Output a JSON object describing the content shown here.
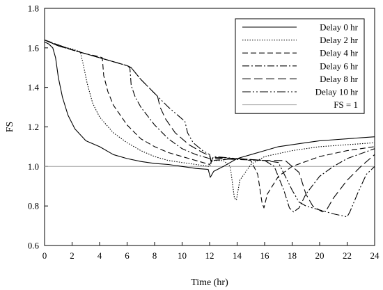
{
  "chart_data": {
    "type": "line",
    "xlabel": "Time (hr)",
    "ylabel": "FS",
    "xlim": [
      0,
      24
    ],
    "ylim": [
      0.6,
      1.8
    ],
    "xticks": [
      "0",
      "2",
      "4",
      "6",
      "8",
      "10",
      "12",
      "14",
      "16",
      "18",
      "20",
      "22",
      "24"
    ],
    "yticks": [
      "0.6",
      "0.8",
      "1.0",
      "1.2",
      "1.4",
      "1.6",
      "1.8"
    ],
    "grid": false,
    "legend_position": "top-right",
    "reference_line": {
      "name": "FS = 1",
      "y": 1.0,
      "color": "#b0b0b0"
    },
    "series": [
      {
        "name": "Delay 0 hr",
        "dash": "",
        "points": [
          [
            0,
            1.63
          ],
          [
            0.3,
            1.62
          ],
          [
            0.6,
            1.6
          ],
          [
            0.8,
            1.55
          ],
          [
            1.0,
            1.45
          ],
          [
            1.3,
            1.35
          ],
          [
            1.7,
            1.26
          ],
          [
            2.2,
            1.19
          ],
          [
            3,
            1.13
          ],
          [
            4,
            1.1
          ],
          [
            5,
            1.06
          ],
          [
            6,
            1.04
          ],
          [
            7,
            1.025
          ],
          [
            8,
            1.015
          ],
          [
            9,
            1.01
          ],
          [
            10,
            1.0
          ],
          [
            11,
            0.99
          ],
          [
            11.9,
            0.985
          ],
          [
            12.05,
            0.945
          ],
          [
            12.3,
            0.975
          ],
          [
            13,
            1.0
          ],
          [
            14,
            1.04
          ],
          [
            15,
            1.06
          ],
          [
            16,
            1.08
          ],
          [
            17,
            1.1
          ],
          [
            18,
            1.11
          ],
          [
            19,
            1.12
          ],
          [
            20,
            1.13
          ],
          [
            21,
            1.135
          ],
          [
            22,
            1.14
          ],
          [
            23,
            1.145
          ],
          [
            24,
            1.15
          ]
        ]
      },
      {
        "name": "Delay 2 hr",
        "dash": "1.5,2",
        "points": [
          [
            0,
            1.64
          ],
          [
            1,
            1.61
          ],
          [
            2,
            1.595
          ],
          [
            2.6,
            1.58
          ],
          [
            2.8,
            1.52
          ],
          [
            3.1,
            1.42
          ],
          [
            3.5,
            1.32
          ],
          [
            4,
            1.25
          ],
          [
            5,
            1.17
          ],
          [
            6,
            1.12
          ],
          [
            7,
            1.08
          ],
          [
            8,
            1.05
          ],
          [
            9,
            1.03
          ],
          [
            10,
            1.02
          ],
          [
            11,
            1.01
          ],
          [
            12,
            1.0
          ],
          [
            12.2,
            1.03
          ],
          [
            13,
            1.03
          ],
          [
            13.5,
            1.0
          ],
          [
            13.8,
            0.84
          ],
          [
            13.95,
            0.83
          ],
          [
            14.2,
            0.93
          ],
          [
            15,
            1.01
          ],
          [
            16,
            1.05
          ],
          [
            18,
            1.08
          ],
          [
            20,
            1.1
          ],
          [
            22,
            1.11
          ],
          [
            24,
            1.12
          ]
        ]
      },
      {
        "name": "Delay 4 hr",
        "dash": "8,4",
        "points": [
          [
            0,
            1.64
          ],
          [
            1,
            1.61
          ],
          [
            2,
            1.59
          ],
          [
            3,
            1.57
          ],
          [
            4,
            1.555
          ],
          [
            4.2,
            1.55
          ],
          [
            4.3,
            1.46
          ],
          [
            4.6,
            1.38
          ],
          [
            5,
            1.31
          ],
          [
            6,
            1.21
          ],
          [
            7,
            1.14
          ],
          [
            8,
            1.1
          ],
          [
            9,
            1.07
          ],
          [
            10,
            1.05
          ],
          [
            11,
            1.03
          ],
          [
            12,
            1.01
          ],
          [
            12.2,
            1.03
          ],
          [
            14,
            1.04
          ],
          [
            15,
            1.03
          ],
          [
            15.5,
            0.96
          ],
          [
            15.8,
            0.82
          ],
          [
            15.95,
            0.79
          ],
          [
            16.2,
            0.86
          ],
          [
            17,
            0.95
          ],
          [
            18,
            1.0
          ],
          [
            20,
            1.05
          ],
          [
            22,
            1.08
          ],
          [
            24,
            1.1
          ]
        ]
      },
      {
        "name": "Delay 6 hr",
        "dash": "10,3,2,3",
        "points": [
          [
            0,
            1.64
          ],
          [
            1,
            1.61
          ],
          [
            2,
            1.59
          ],
          [
            3,
            1.57
          ],
          [
            4,
            1.55
          ],
          [
            5,
            1.53
          ],
          [
            6,
            1.51
          ],
          [
            6.2,
            1.5
          ],
          [
            6.3,
            1.41
          ],
          [
            6.6,
            1.35
          ],
          [
            7,
            1.3
          ],
          [
            8,
            1.21
          ],
          [
            9,
            1.14
          ],
          [
            10,
            1.09
          ],
          [
            11,
            1.06
          ],
          [
            12,
            1.04
          ],
          [
            12.2,
            1.04
          ],
          [
            16,
            1.03
          ],
          [
            16.7,
            1.0
          ],
          [
            17.4,
            0.88
          ],
          [
            17.8,
            0.79
          ],
          [
            18.1,
            0.77
          ],
          [
            18.5,
            0.79
          ],
          [
            19,
            0.86
          ],
          [
            20,
            0.95
          ],
          [
            21,
            1.0
          ],
          [
            22,
            1.04
          ],
          [
            24,
            1.09
          ]
        ]
      },
      {
        "name": "Delay 8 hr",
        "dash": "12,5",
        "points": [
          [
            0,
            1.64
          ],
          [
            2,
            1.59
          ],
          [
            4,
            1.55
          ],
          [
            6,
            1.51
          ],
          [
            6.3,
            1.5
          ],
          [
            7,
            1.44
          ],
          [
            8,
            1.37
          ],
          [
            8.2,
            1.36
          ],
          [
            8.4,
            1.3
          ],
          [
            8.8,
            1.24
          ],
          [
            9.5,
            1.17
          ],
          [
            10.5,
            1.11
          ],
          [
            11.5,
            1.07
          ],
          [
            12,
            1.055
          ],
          [
            12.1,
            1.025
          ],
          [
            12.3,
            1.045
          ],
          [
            14,
            1.04
          ],
          [
            16,
            1.03
          ],
          [
            17.5,
            1.03
          ],
          [
            18.5,
            0.97
          ],
          [
            19,
            0.86
          ],
          [
            19.5,
            0.8
          ],
          [
            20.2,
            0.77
          ],
          [
            20.5,
            0.78
          ],
          [
            21,
            0.84
          ],
          [
            22,
            0.93
          ],
          [
            23,
            1.0
          ],
          [
            24,
            1.06
          ]
        ]
      },
      {
        "name": "Delay 10 hr",
        "dash": "12,3,2,3,2,3",
        "points": [
          [
            0,
            1.64
          ],
          [
            2,
            1.59
          ],
          [
            4,
            1.55
          ],
          [
            6,
            1.51
          ],
          [
            6.3,
            1.5
          ],
          [
            7,
            1.44
          ],
          [
            8,
            1.37
          ],
          [
            9,
            1.3
          ],
          [
            10,
            1.24
          ],
          [
            10.2,
            1.23
          ],
          [
            10.4,
            1.17
          ],
          [
            10.8,
            1.12
          ],
          [
            11.5,
            1.08
          ],
          [
            12,
            1.06
          ],
          [
            12.1,
            1.03
          ],
          [
            12.3,
            1.05
          ],
          [
            14,
            1.04
          ],
          [
            16,
            1.03
          ],
          [
            17,
            1.02
          ],
          [
            18,
            0.88
          ],
          [
            18.5,
            0.82
          ],
          [
            19,
            0.8
          ],
          [
            20,
            0.78
          ],
          [
            21,
            0.76
          ],
          [
            22,
            0.745
          ],
          [
            22.2,
            0.77
          ],
          [
            22.8,
            0.87
          ],
          [
            23.4,
            0.96
          ],
          [
            24,
            1.0
          ]
        ]
      }
    ]
  }
}
